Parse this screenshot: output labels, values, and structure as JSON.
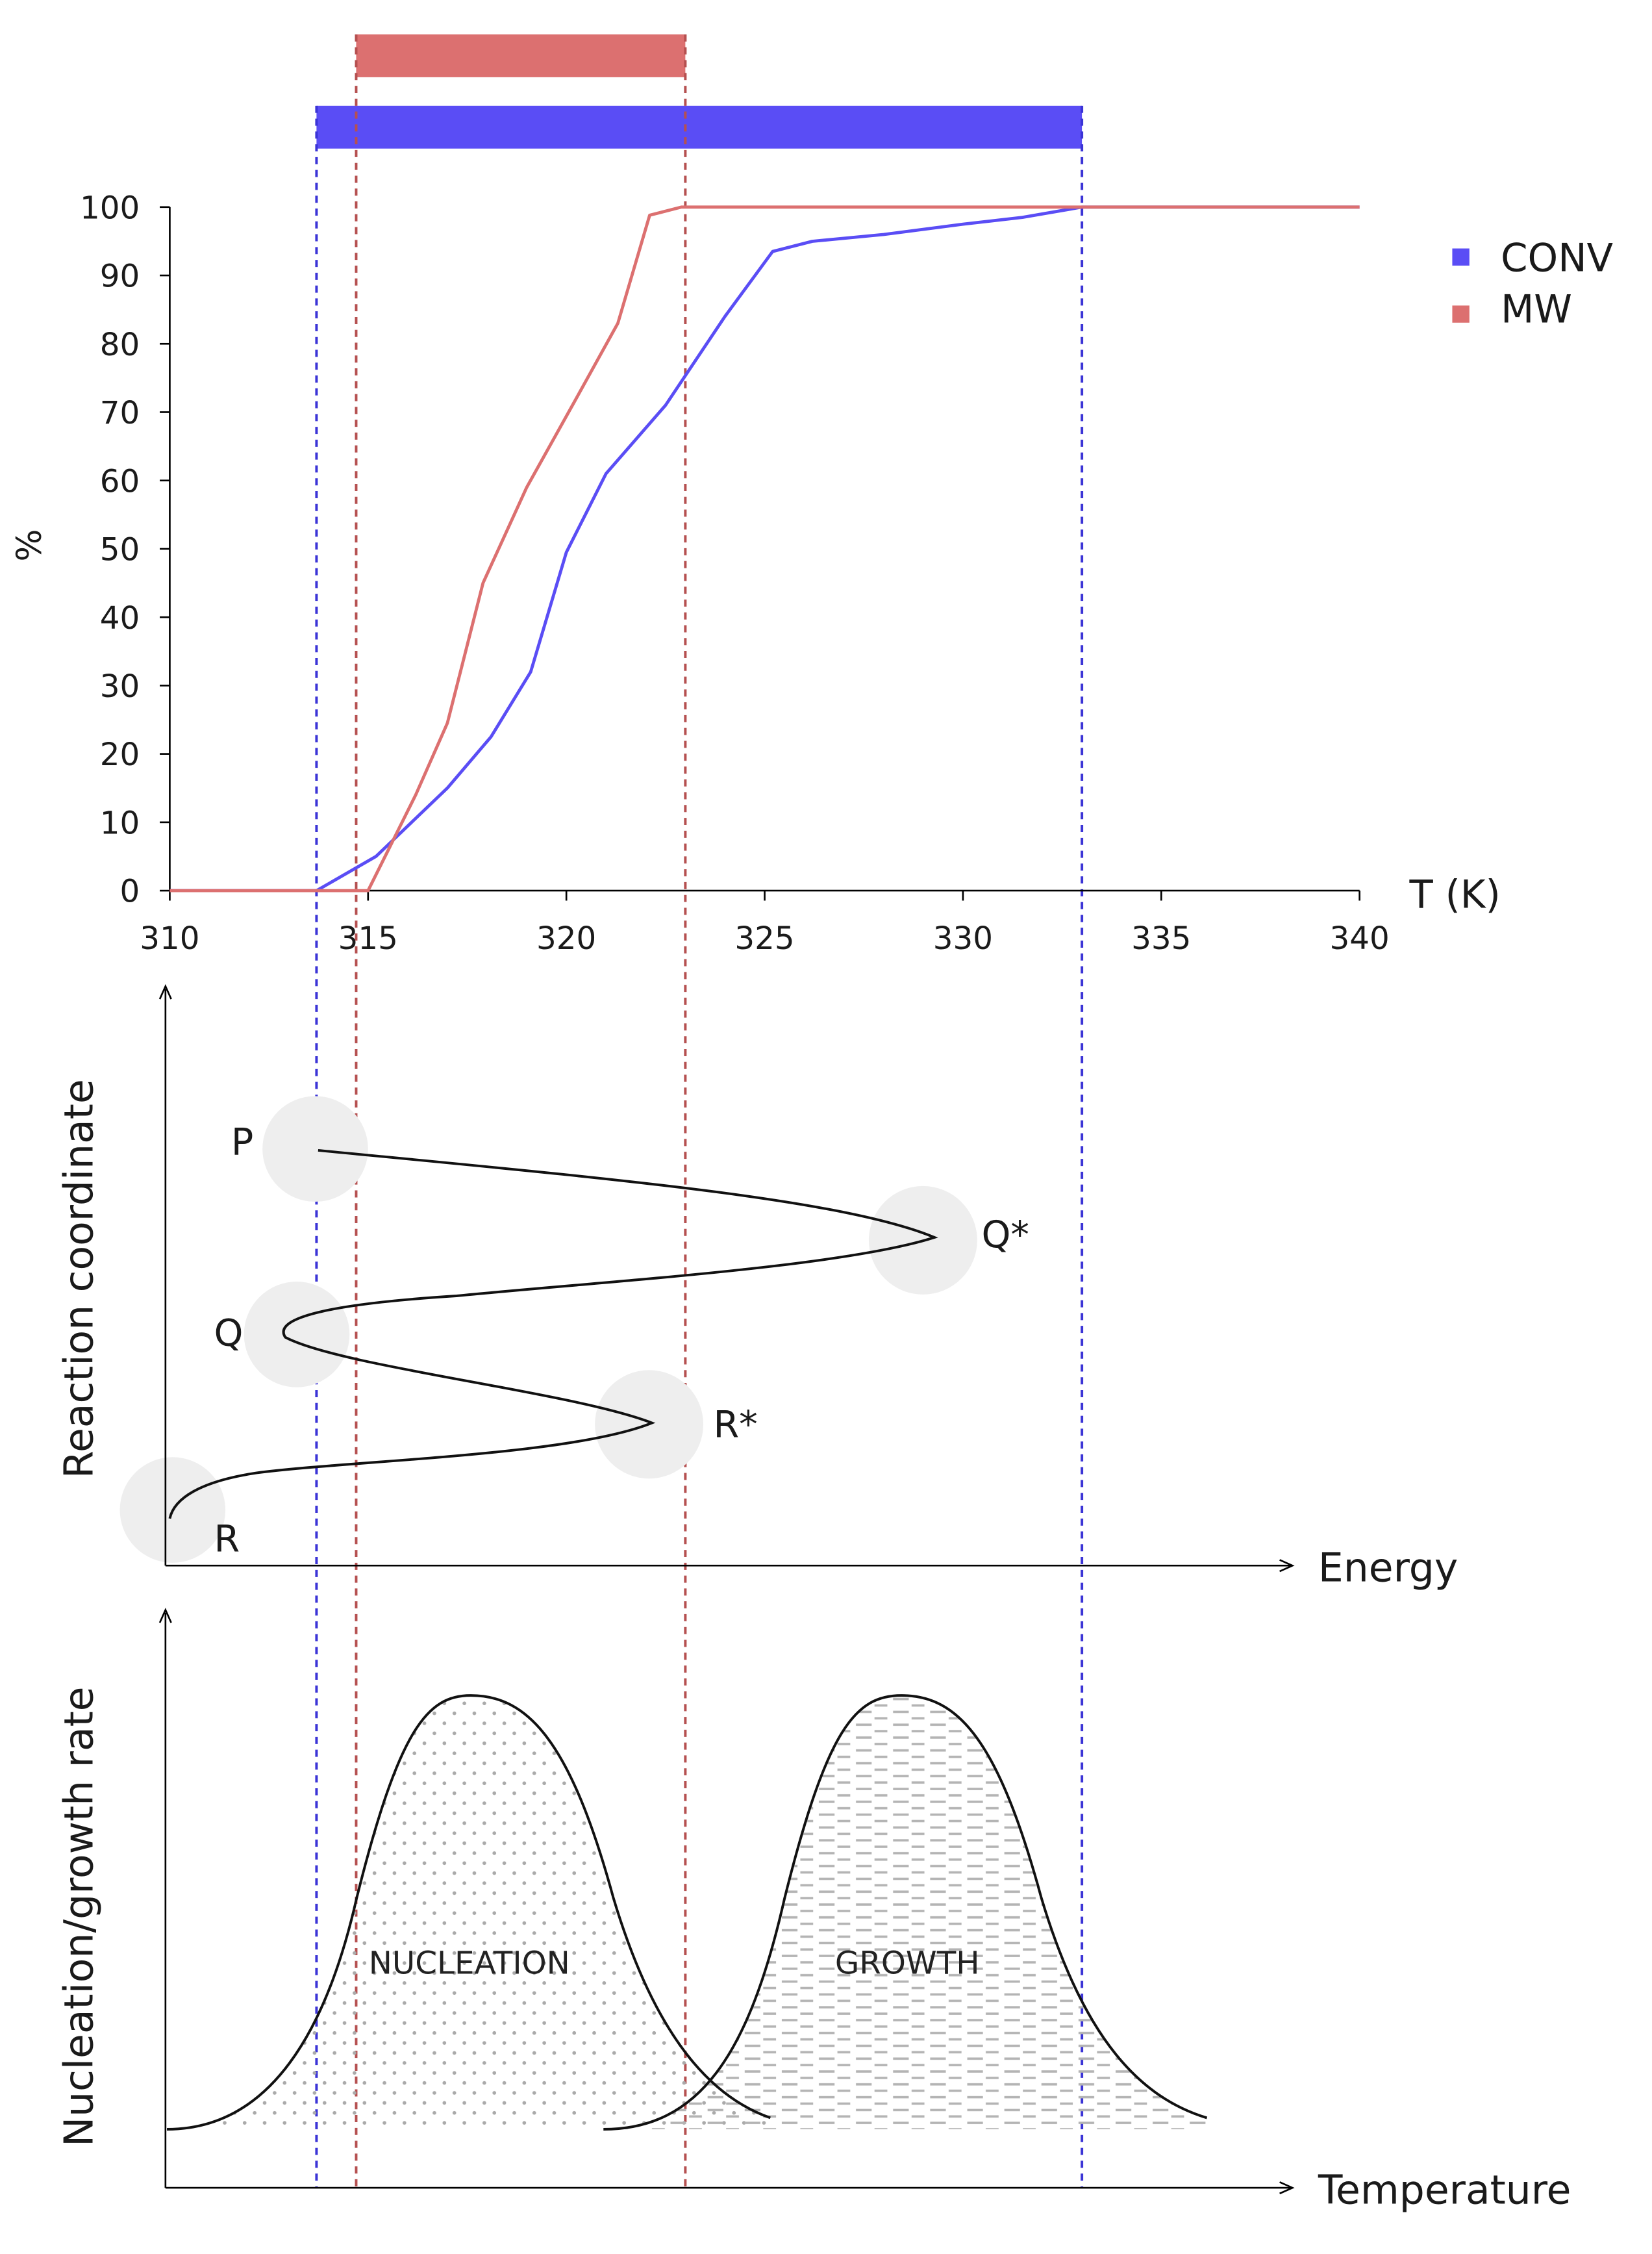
{
  "colors": {
    "conv": "#5a4df5",
    "mw": "#dc7070",
    "axis": "#000000",
    "curve": "#111111",
    "circle": "#eeeeee",
    "pattern": "#aaaaaa",
    "text": "#1a1a1a"
  },
  "chart_data": [
    {
      "type": "line",
      "title": "",
      "xlabel": "T (K)",
      "ylabel": "%",
      "xlim": [
        310,
        340
      ],
      "ylim": [
        0,
        100
      ],
      "xticks": [
        310,
        315,
        320,
        325,
        330,
        335,
        340
      ],
      "yticks": [
        0,
        10,
        20,
        30,
        40,
        50,
        60,
        70,
        80,
        90,
        100
      ],
      "x_tick_labels": [
        "310",
        "315",
        "320",
        "325",
        "330",
        "335",
        "340"
      ],
      "y_tick_labels": [
        "0",
        "10",
        "20",
        "30",
        "40",
        "50",
        "60",
        "70",
        "80",
        "90",
        "100"
      ],
      "legend": "right",
      "grid": false,
      "series": [
        {
          "name": "CONV",
          "x": [
            310,
            313.7,
            315.2,
            317,
            318.1,
            319.1,
            320,
            321,
            322.5,
            324,
            325.2,
            326.2,
            328,
            330,
            331.5,
            333,
            340
          ],
          "y": [
            0,
            0,
            5,
            15,
            22.5,
            32,
            49.5,
            61,
            71,
            84,
            93.5,
            95,
            96,
            97.5,
            98.5,
            100,
            100
          ]
        },
        {
          "name": "MW",
          "x": [
            310,
            315,
            316.2,
            317,
            317.9,
            319,
            320.2,
            321.3,
            322.1,
            322.9,
            340
          ],
          "y": [
            0,
            0,
            14,
            24.5,
            45,
            59,
            71.5,
            83,
            98.8,
            100,
            100
          ]
        }
      ],
      "ranges": [
        {
          "series": "MW",
          "x": [
            314.7,
            323
          ]
        },
        {
          "series": "CONV",
          "x": [
            313.7,
            333
          ]
        }
      ]
    },
    {
      "type": "line",
      "title": "",
      "xlabel": "Energy",
      "ylabel": "Reaction coordinate",
      "points": [
        {
          "label": "P"
        },
        {
          "label": "Q*"
        },
        {
          "label": "Q"
        },
        {
          "label": "R*"
        },
        {
          "label": "R"
        }
      ]
    },
    {
      "type": "area",
      "title": "",
      "xlabel": "Temperature",
      "ylabel": "Nucleation/growth rate",
      "regions": [
        {
          "label": "NUCLEATION"
        },
        {
          "label": "GROWTH"
        }
      ]
    }
  ]
}
